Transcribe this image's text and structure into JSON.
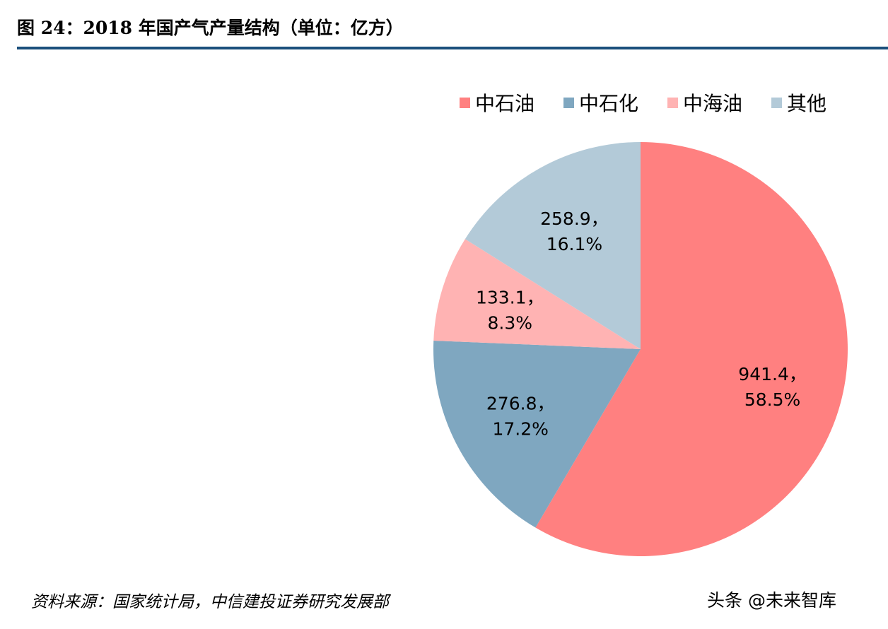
{
  "header": {
    "title": "图 24：2018 年国产气产量结构（单位：亿方）"
  },
  "footer": {
    "source": "资料来源：国家统计局，中信建投证券研究发展部",
    "watermark": "头条 @未来智库"
  },
  "chart_data": {
    "type": "pie",
    "title": "图 24：2018 年国产气产量结构（单位：亿方）",
    "categories": [
      "中石油",
      "中石化",
      "中海油",
      "其他"
    ],
    "values": [
      941.4,
      276.8,
      133.1,
      258.9
    ],
    "percentages": [
      "58.5%",
      "17.2%",
      "8.3%",
      "16.1%"
    ],
    "data_labels": [
      [
        "941.4，",
        "58.5%"
      ],
      [
        "276.8，",
        "17.2%"
      ],
      [
        "133.1，",
        "8.3%"
      ],
      [
        "258.9，",
        "16.1%"
      ]
    ],
    "colors": [
      "#ff8080",
      "#7fa7c0",
      "#ffb3b3",
      "#b3cad8"
    ],
    "legend": "top-right",
    "start_angle": "12 o'clock",
    "direction": "clockwise"
  }
}
